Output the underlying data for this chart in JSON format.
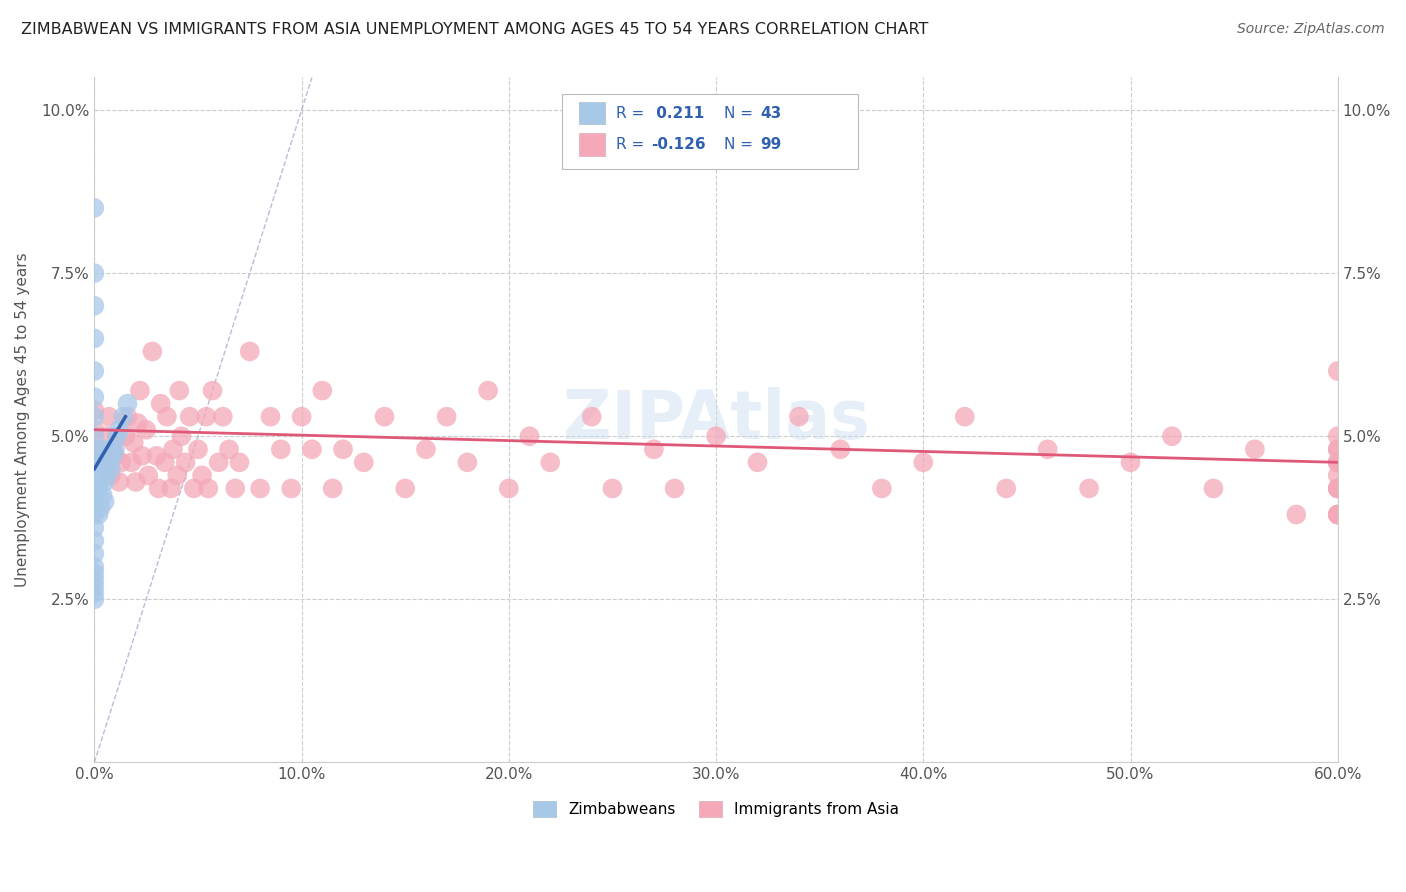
{
  "title": "ZIMBABWEAN VS IMMIGRANTS FROM ASIA UNEMPLOYMENT AMONG AGES 45 TO 54 YEARS CORRELATION CHART",
  "source": "Source: ZipAtlas.com",
  "ylabel": "Unemployment Among Ages 45 to 54 years",
  "xlim": [
    0.0,
    0.6
  ],
  "ylim": [
    0.0,
    0.105
  ],
  "xticks": [
    0.0,
    0.1,
    0.2,
    0.3,
    0.4,
    0.5,
    0.6
  ],
  "xticklabels": [
    "0.0%",
    "10.0%",
    "20.0%",
    "30.0%",
    "40.0%",
    "50.0%",
    "60.0%"
  ],
  "yticks": [
    0.0,
    0.025,
    0.05,
    0.075,
    0.1
  ],
  "yticklabels": [
    "",
    "2.5%",
    "5.0%",
    "7.5%",
    "10.0%"
  ],
  "blue_R": 0.211,
  "blue_N": 43,
  "pink_R": -0.126,
  "pink_N": 99,
  "blue_color": "#a8c8e8",
  "pink_color": "#f4a8b8",
  "blue_line_color": "#3060b0",
  "pink_line_color": "#e05878",
  "legend_label_blue": "Zimbabweans",
  "legend_label_pink": "Immigrants from Asia",
  "watermark": "ZIPAtlas",
  "blue_scatter_x": [
    0.0,
    0.0,
    0.0,
    0.0,
    0.0,
    0.0,
    0.0,
    0.0,
    0.0,
    0.0,
    0.0,
    0.0,
    0.0,
    0.0,
    0.0,
    0.0,
    0.0,
    0.0,
    0.0,
    0.0,
    0.0,
    0.0,
    0.0,
    0.002,
    0.002,
    0.002,
    0.003,
    0.003,
    0.004,
    0.004,
    0.005,
    0.005,
    0.005,
    0.006,
    0.007,
    0.008,
    0.008,
    0.009,
    0.01,
    0.011,
    0.012,
    0.014,
    0.016
  ],
  "blue_scatter_y": [
    0.026,
    0.028,
    0.03,
    0.032,
    0.034,
    0.036,
    0.038,
    0.04,
    0.042,
    0.044,
    0.046,
    0.048,
    0.05,
    0.053,
    0.056,
    0.06,
    0.065,
    0.07,
    0.075,
    0.085,
    0.025,
    0.027,
    0.029,
    0.038,
    0.042,
    0.046,
    0.039,
    0.044,
    0.041,
    0.047,
    0.04,
    0.043,
    0.048,
    0.044,
    0.046,
    0.045,
    0.048,
    0.047,
    0.048,
    0.05,
    0.051,
    0.053,
    0.055
  ],
  "pink_scatter_x": [
    0.0,
    0.0,
    0.0,
    0.005,
    0.006,
    0.007,
    0.008,
    0.009,
    0.01,
    0.011,
    0.012,
    0.013,
    0.015,
    0.016,
    0.018,
    0.019,
    0.02,
    0.021,
    0.022,
    0.023,
    0.025,
    0.026,
    0.028,
    0.03,
    0.031,
    0.032,
    0.034,
    0.035,
    0.037,
    0.038,
    0.04,
    0.041,
    0.042,
    0.044,
    0.046,
    0.048,
    0.05,
    0.052,
    0.054,
    0.055,
    0.057,
    0.06,
    0.062,
    0.065,
    0.068,
    0.07,
    0.075,
    0.08,
    0.085,
    0.09,
    0.095,
    0.1,
    0.105,
    0.11,
    0.115,
    0.12,
    0.13,
    0.14,
    0.15,
    0.16,
    0.17,
    0.18,
    0.19,
    0.2,
    0.21,
    0.22,
    0.24,
    0.25,
    0.27,
    0.28,
    0.3,
    0.32,
    0.34,
    0.36,
    0.38,
    0.4,
    0.42,
    0.44,
    0.46,
    0.48,
    0.5,
    0.52,
    0.54,
    0.56,
    0.58,
    0.6,
    0.6,
    0.6,
    0.6,
    0.6,
    0.6,
    0.6,
    0.6,
    0.6,
    0.6,
    0.6,
    0.6,
    0.6,
    0.6
  ],
  "pink_scatter_y": [
    0.048,
    0.051,
    0.054,
    0.046,
    0.05,
    0.053,
    0.044,
    0.048,
    0.047,
    0.05,
    0.043,
    0.046,
    0.05,
    0.053,
    0.046,
    0.049,
    0.043,
    0.052,
    0.057,
    0.047,
    0.051,
    0.044,
    0.063,
    0.047,
    0.042,
    0.055,
    0.046,
    0.053,
    0.042,
    0.048,
    0.044,
    0.057,
    0.05,
    0.046,
    0.053,
    0.042,
    0.048,
    0.044,
    0.053,
    0.042,
    0.057,
    0.046,
    0.053,
    0.048,
    0.042,
    0.046,
    0.063,
    0.042,
    0.053,
    0.048,
    0.042,
    0.053,
    0.048,
    0.057,
    0.042,
    0.048,
    0.046,
    0.053,
    0.042,
    0.048,
    0.053,
    0.046,
    0.057,
    0.042,
    0.05,
    0.046,
    0.053,
    0.042,
    0.048,
    0.042,
    0.05,
    0.046,
    0.053,
    0.048,
    0.042,
    0.046,
    0.053,
    0.042,
    0.048,
    0.042,
    0.046,
    0.05,
    0.042,
    0.048,
    0.038,
    0.046,
    0.048,
    0.042,
    0.044,
    0.038,
    0.046,
    0.042,
    0.05,
    0.038,
    0.046,
    0.042,
    0.048,
    0.038,
    0.06
  ]
}
